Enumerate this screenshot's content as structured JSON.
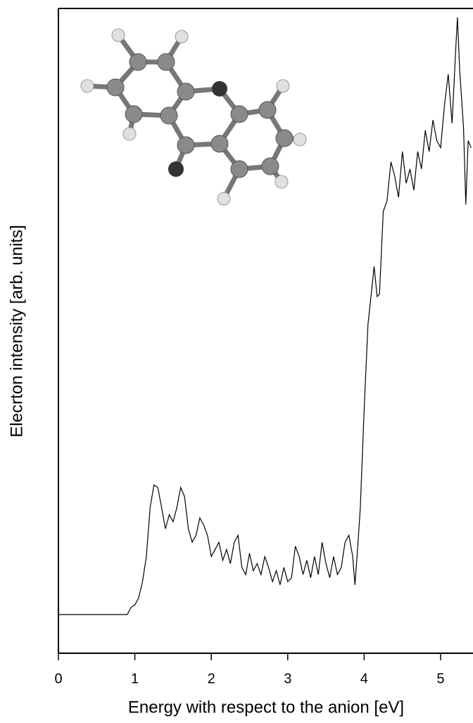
{
  "chart_data": {
    "type": "line",
    "xlabel": "Energy with respect to the anion [eV]",
    "ylabel": "Elecrton intensity [arb. units]",
    "color": "#000000",
    "x": [
      0,
      0.9,
      0.95,
      1.0,
      1.05,
      1.1,
      1.15,
      1.2,
      1.25,
      1.3,
      1.35,
      1.4,
      1.45,
      1.5,
      1.55,
      1.6,
      1.65,
      1.7,
      1.75,
      1.8,
      1.85,
      1.9,
      1.95,
      2.0,
      2.05,
      2.1,
      2.15,
      2.2,
      2.25,
      2.3,
      2.35,
      2.4,
      2.45,
      2.5,
      2.55,
      2.6,
      2.65,
      2.7,
      2.75,
      2.8,
      2.85,
      2.9,
      2.95,
      3.0,
      3.05,
      3.1,
      3.15,
      3.2,
      3.25,
      3.3,
      3.35,
      3.4,
      3.45,
      3.5,
      3.55,
      3.6,
      3.65,
      3.7,
      3.75,
      3.8,
      3.85,
      3.88,
      3.92,
      3.95,
      4.0,
      4.05,
      4.1,
      4.13,
      4.17,
      4.2,
      4.25,
      4.3,
      4.35,
      4.4,
      4.45,
      4.5,
      4.55,
      4.6,
      4.65,
      4.7,
      4.75,
      4.8,
      4.85,
      4.9,
      4.95,
      5.0,
      5.05,
      5.1,
      5.15,
      5.2,
      5.22,
      5.25,
      5.3,
      5.33,
      5.36,
      5.4
    ],
    "values": [
      6.0,
      6.0,
      7.1,
      7.5,
      8.6,
      11.1,
      15.0,
      22.6,
      26.1,
      25.7,
      22.6,
      19.3,
      21.5,
      20.4,
      22.6,
      25.7,
      24.3,
      19.3,
      17.2,
      18.3,
      21.0,
      19.9,
      18.3,
      15.0,
      16.1,
      17.2,
      14.4,
      16.1,
      13.9,
      17.2,
      18.3,
      13.3,
      12.2,
      15.5,
      12.8,
      13.9,
      12.2,
      15.0,
      13.3,
      11.1,
      12.8,
      10.6,
      13.3,
      11.1,
      11.7,
      16.6,
      15.0,
      12.2,
      14.4,
      11.7,
      15.0,
      12.2,
      17.2,
      13.9,
      11.7,
      15.0,
      12.2,
      13.3,
      17.2,
      18.3,
      15.0,
      10.6,
      17.2,
      22.6,
      37.9,
      51.0,
      56.5,
      60.0,
      55.3,
      55.7,
      68.5,
      70.2,
      76.2,
      74.0,
      70.7,
      77.8,
      72.9,
      75.1,
      71.8,
      77.8,
      75.1,
      81.1,
      77.8,
      82.7,
      79.5,
      78.4,
      84.9,
      89.8,
      82.2,
      94.2,
      98.6,
      90.4,
      81.6,
      69.6,
      79.5,
      78.4
    ],
    "xlim": [
      0,
      5.4
    ],
    "ylim": [
      0,
      100
    ],
    "xticks": [
      0,
      1,
      2,
      3,
      4,
      5
    ]
  }
}
